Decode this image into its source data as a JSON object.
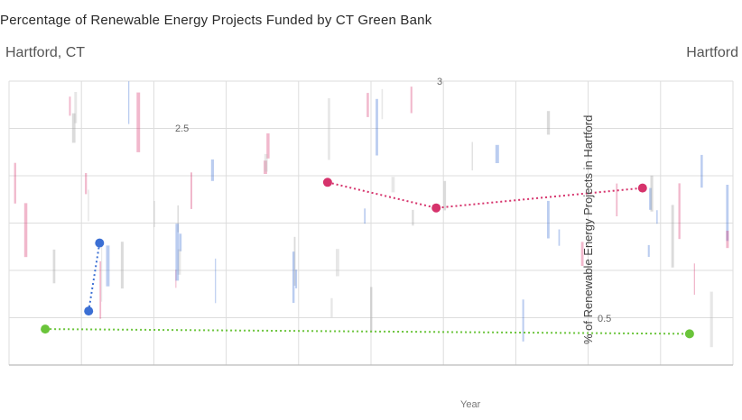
{
  "chart_data": {
    "type": "scatter",
    "title": "Percentage of Renewable Energy Projects Funded by CT Green Bank",
    "locations": [
      "Hartford, CT",
      "Hartford"
    ],
    "x_axis_title": "Year",
    "y_axis_title": "% of Renewable Energy Projects in Hartford",
    "y_tick_labels": [
      "2.5",
      "0.5"
    ],
    "top_label": "3",
    "ylim": [
      0,
      3
    ],
    "grid": true,
    "colors": {
      "red": "#d6336c",
      "blue": "#3b6fd4",
      "green": "#6ac43a",
      "grid": "#dddddd"
    },
    "series": [
      {
        "color": "#d6336c",
        "points": [
          {
            "x": 0.44,
            "y": 1.93
          },
          {
            "x": 0.59,
            "y": 1.66
          },
          {
            "x": 0.875,
            "y": 1.87
          }
        ]
      },
      {
        "color": "#3b6fd4",
        "points": [
          {
            "x": 0.125,
            "y": 1.29
          },
          {
            "x": 0.11,
            "y": 0.57
          }
        ]
      },
      {
        "color": "#6ac43a",
        "points": [
          {
            "x": 0.05,
            "y": 0.38
          },
          {
            "x": 0.94,
            "y": 0.33
          }
        ]
      }
    ]
  }
}
